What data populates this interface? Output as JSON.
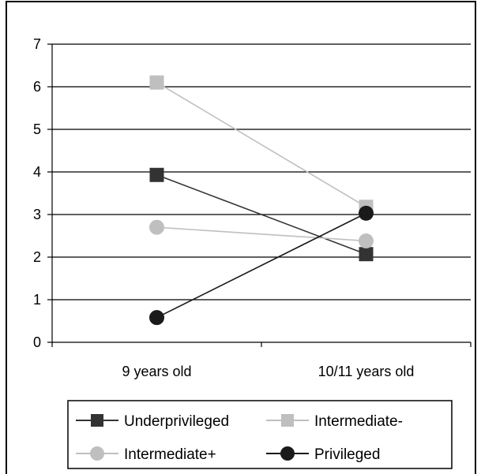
{
  "chart_data": {
    "type": "line",
    "categories": [
      "9 years old",
      "10/11 years old"
    ],
    "ylim": [
      0,
      7
    ],
    "yticks": [
      0,
      1,
      2,
      3,
      4,
      5,
      6,
      7
    ],
    "grid": true,
    "legend_placement": "bottom",
    "series": [
      {
        "name": "Underprivileged",
        "values": [
          3.93,
          2.07
        ],
        "color": "#333333",
        "marker": "square"
      },
      {
        "name": "Intermediate-",
        "values": [
          6.1,
          3.18
        ],
        "color": "#bfbfbf",
        "marker": "square"
      },
      {
        "name": "Intermediate+",
        "values": [
          2.7,
          2.38
        ],
        "color": "#bfbfbf",
        "marker": "circle"
      },
      {
        "name": "Privileged",
        "values": [
          0.58,
          3.03
        ],
        "color": "#1a1a1a",
        "marker": "circle"
      }
    ]
  }
}
